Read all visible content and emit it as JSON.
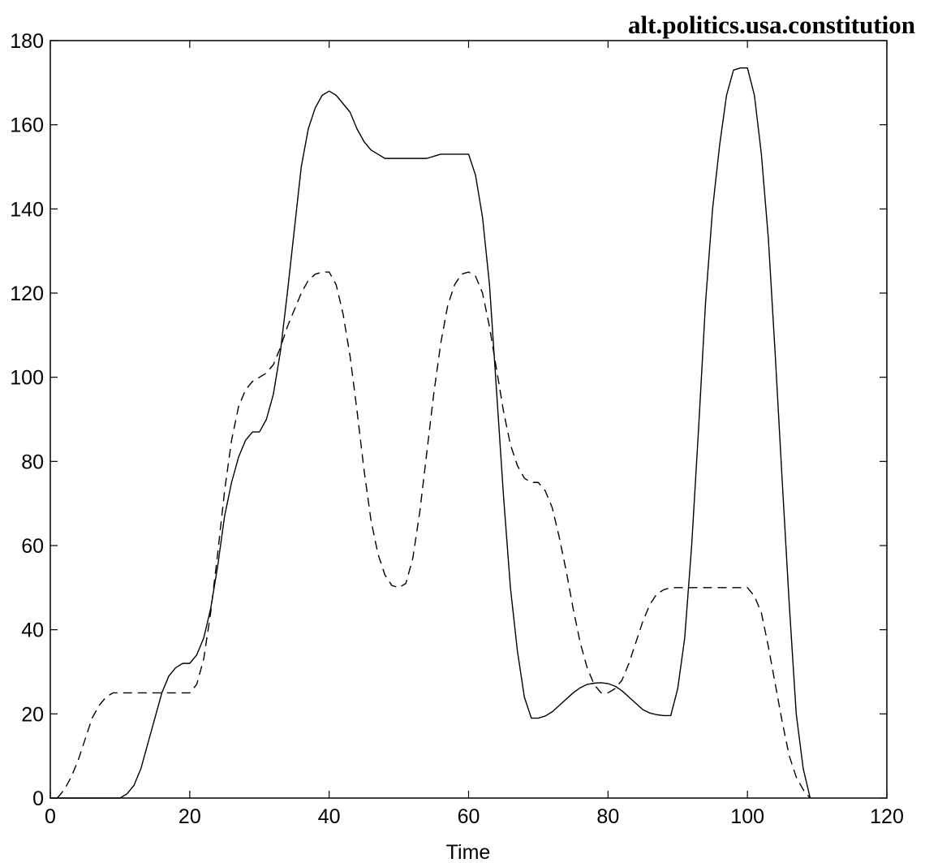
{
  "chart_data": {
    "type": "line",
    "title": "alt.politics.usa.constitution",
    "xlabel": "Time",
    "ylabel": "",
    "xlim": [
      0,
      120
    ],
    "ylim": [
      0,
      180
    ],
    "xticks": [
      0,
      20,
      40,
      60,
      80,
      100,
      120
    ],
    "yticks": [
      0,
      20,
      40,
      60,
      80,
      100,
      120,
      140,
      160,
      180
    ],
    "grid": false,
    "legend": "none",
    "series": [
      {
        "style": "solid",
        "color": "#000000",
        "x": [
          0,
          10,
          11,
          12,
          13,
          14,
          15,
          16,
          17,
          18,
          19,
          20,
          21,
          22,
          23,
          24,
          25,
          26,
          27,
          28,
          29,
          30,
          31,
          32,
          33,
          34,
          35,
          36,
          37,
          38,
          39,
          40,
          41,
          42,
          43,
          44,
          45,
          46,
          47,
          48,
          49,
          50,
          52,
          54,
          56,
          58,
          60,
          61,
          62,
          63,
          64,
          65,
          66,
          67,
          68,
          69,
          70,
          71,
          72,
          73,
          74,
          75,
          76,
          77,
          78,
          79,
          80,
          81,
          82,
          83,
          84,
          85,
          86,
          87,
          88,
          89,
          90,
          91,
          92,
          93,
          94,
          95,
          96,
          97,
          98,
          99,
          100,
          101,
          102,
          103,
          104,
          105,
          106,
          107,
          108,
          109
        ],
        "y": [
          0,
          0,
          1,
          3,
          7,
          13,
          19,
          25,
          29,
          31,
          32,
          32,
          34,
          38,
          45,
          55,
          67,
          75,
          81,
          85,
          87,
          87,
          90,
          96,
          106,
          120,
          135,
          150,
          159,
          164,
          167,
          168,
          167,
          165,
          163,
          159,
          156,
          154,
          153,
          152,
          152,
          152,
          152,
          152,
          153,
          153,
          153,
          148,
          138,
          122,
          97,
          72,
          50,
          35,
          24,
          19,
          19,
          19.5,
          20.5,
          22,
          23.5,
          25,
          26.2,
          27,
          27.3,
          27.4,
          27.2,
          26.6,
          25.5,
          24,
          22.5,
          21,
          20.2,
          19.8,
          19.6,
          19.6,
          26,
          38,
          60,
          88,
          118,
          140,
          155,
          167,
          173,
          173.5,
          173.5,
          167,
          153,
          133,
          105,
          75,
          46,
          20,
          7,
          0
        ]
      },
      {
        "style": "dashed",
        "color": "#000000",
        "x": [
          1,
          2,
          3,
          4,
          5,
          6,
          7,
          8,
          9,
          10,
          12,
          14,
          16,
          18,
          20,
          21,
          22,
          23,
          24,
          25,
          26,
          27,
          28,
          29,
          30,
          31,
          32,
          33,
          34,
          35,
          36,
          37,
          38,
          39,
          40,
          41,
          42,
          43,
          44,
          45,
          46,
          47,
          48,
          49,
          50,
          51,
          52,
          53,
          54,
          55,
          56,
          57,
          58,
          59,
          60,
          61,
          62,
          63,
          64,
          65,
          66,
          67,
          68,
          69,
          70,
          71,
          72,
          73,
          74,
          75,
          76,
          77,
          78,
          79,
          80,
          81,
          82,
          83,
          84,
          85,
          86,
          87,
          88,
          89,
          90,
          92,
          94,
          96,
          98,
          100,
          101,
          102,
          103,
          104,
          105,
          106,
          107,
          108,
          109
        ],
        "y": [
          0,
          2,
          5,
          9,
          14,
          19,
          22,
          24,
          25,
          25,
          25,
          25,
          25,
          25,
          25,
          27,
          33,
          44,
          58,
          73,
          85,
          93,
          97,
          99,
          100,
          101,
          103,
          107,
          112,
          116,
          120,
          123,
          124.5,
          125,
          125,
          122,
          115,
          105,
          92,
          78,
          66,
          58,
          53,
          50.5,
          50,
          51,
          57,
          68,
          82,
          96,
          108,
          117,
          122,
          124.5,
          125,
          124,
          120,
          112,
          102,
          92,
          84,
          79,
          76,
          75,
          75,
          73,
          69,
          62,
          54,
          45,
          37,
          31,
          27,
          25,
          25,
          26,
          28,
          32,
          37,
          42,
          46,
          48.5,
          49.5,
          50,
          50,
          50,
          50,
          50,
          50,
          50,
          48,
          44,
          36,
          27,
          18,
          10,
          5,
          2,
          0
        ]
      }
    ]
  }
}
